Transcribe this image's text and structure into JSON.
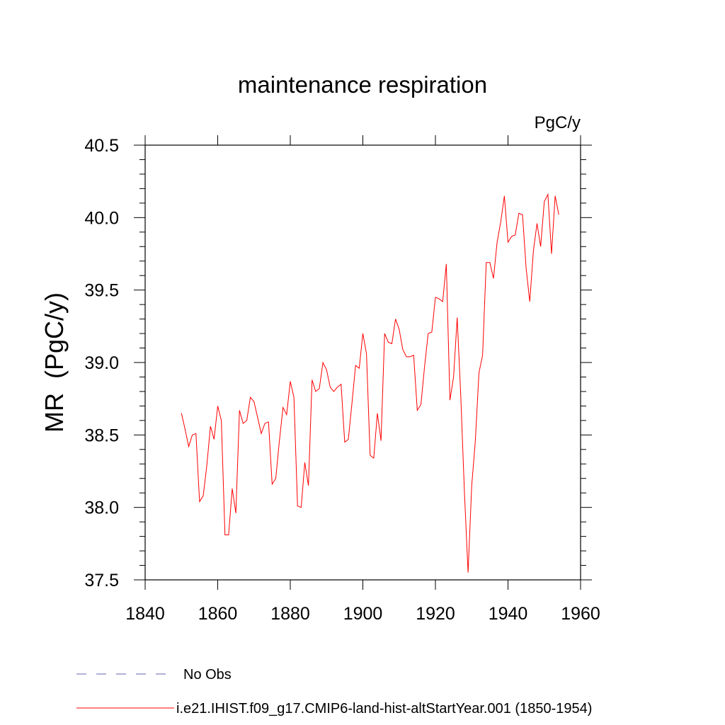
{
  "chart_data": {
    "type": "line",
    "title": "maintenance respiration",
    "units_label": "PgC/y",
    "ylabel": "MR  (PgC/y)",
    "xlabel": "",
    "xlim": [
      1840,
      1960
    ],
    "ylim": [
      37.5,
      40.5
    ],
    "x_ticks": [
      1840,
      1860,
      1880,
      1900,
      1920,
      1940,
      1960
    ],
    "x_tick_labels": [
      "1840",
      "1860",
      "1880",
      "1900",
      "1920",
      "1940",
      "1960"
    ],
    "y_ticks": [
      37.5,
      38.0,
      38.5,
      39.0,
      39.5,
      40.0,
      40.5
    ],
    "y_tick_labels": [
      "37.5",
      "38.0",
      "38.5",
      "39.0",
      "39.5",
      "40.0",
      "40.5"
    ],
    "grid": false,
    "legend_placement": "bottom-left",
    "colors": {
      "model_series": "#ff0000",
      "obs_series": "#8080c0"
    },
    "legend": [
      {
        "label": "No Obs",
        "style": "dashed",
        "color": "#8080c0"
      },
      {
        "label": "i.e21.IHIST.f09_g17.CMIP6-land-hist-altStartYear.001 (1850-1954)",
        "style": "solid",
        "color": "#ff0000"
      }
    ],
    "series": [
      {
        "name": "i.e21.IHIST.f09_g17.CMIP6-land-hist-altStartYear.001 (1850-1954)",
        "x": [
          1850,
          1851,
          1852,
          1853,
          1854,
          1855,
          1856,
          1857,
          1858,
          1859,
          1860,
          1861,
          1862,
          1863,
          1864,
          1865,
          1866,
          1867,
          1868,
          1869,
          1870,
          1871,
          1872,
          1873,
          1874,
          1875,
          1876,
          1877,
          1878,
          1879,
          1880,
          1881,
          1882,
          1883,
          1884,
          1885,
          1886,
          1887,
          1888,
          1889,
          1890,
          1891,
          1892,
          1893,
          1894,
          1895,
          1896,
          1897,
          1898,
          1899,
          1900,
          1901,
          1902,
          1903,
          1904,
          1905,
          1906,
          1907,
          1908,
          1909,
          1910,
          1911,
          1912,
          1913,
          1914,
          1915,
          1916,
          1917,
          1918,
          1919,
          1920,
          1921,
          1922,
          1923,
          1924,
          1925,
          1926,
          1927,
          1928,
          1929,
          1930,
          1931,
          1932,
          1933,
          1934,
          1935,
          1936,
          1937,
          1938,
          1939,
          1940,
          1941,
          1942,
          1943,
          1944,
          1945,
          1946,
          1947,
          1948,
          1949,
          1950,
          1951,
          1952,
          1953,
          1954
        ],
        "values": [
          38.65,
          38.54,
          38.42,
          38.5,
          38.51,
          38.04,
          38.08,
          38.29,
          38.56,
          38.47,
          38.7,
          38.6,
          37.81,
          37.81,
          38.13,
          37.96,
          38.67,
          38.58,
          38.6,
          38.76,
          38.73,
          38.62,
          38.51,
          38.58,
          38.59,
          38.16,
          38.2,
          38.46,
          38.69,
          38.64,
          38.87,
          38.76,
          38.01,
          38.0,
          38.31,
          38.15,
          38.88,
          38.8,
          38.82,
          39.0,
          38.95,
          38.83,
          38.8,
          38.83,
          38.85,
          38.45,
          38.47,
          38.72,
          38.98,
          38.96,
          39.2,
          39.06,
          38.36,
          38.34,
          38.65,
          38.46,
          39.2,
          39.14,
          39.13,
          39.3,
          39.23,
          39.09,
          39.04,
          39.04,
          39.05,
          38.67,
          38.71,
          38.97,
          39.2,
          39.21,
          39.45,
          39.44,
          39.42,
          39.68,
          38.74,
          38.9,
          39.31,
          38.76,
          38.1,
          37.55,
          38.15,
          38.46,
          38.93,
          39.05,
          39.69,
          39.69,
          39.58,
          39.83,
          39.97,
          40.15,
          39.83,
          39.87,
          39.88,
          40.03,
          40.02,
          39.65,
          39.42,
          39.77,
          39.96,
          39.8,
          40.11,
          40.16,
          39.75,
          40.15,
          40.02
        ]
      }
    ]
  }
}
